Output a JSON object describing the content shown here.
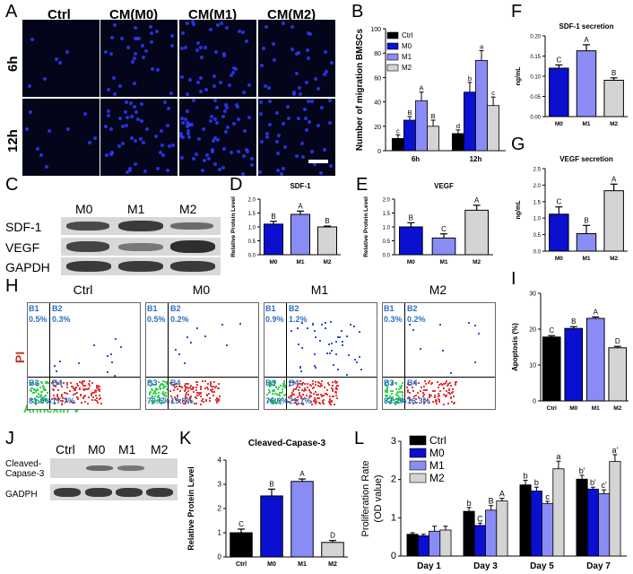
{
  "panel_labels": {
    "A": "A",
    "B": "B",
    "C": "C",
    "D": "D",
    "E": "E",
    "F": "F",
    "G": "G",
    "H": "H",
    "I": "I",
    "J": "J",
    "K": "K",
    "L": "L"
  },
  "panelA": {
    "col_headers": [
      "Ctrl",
      "CM(M0)",
      "CM(M1)",
      "CM(M2)"
    ],
    "row_headers": [
      "6h",
      "12h"
    ]
  },
  "panelC": {
    "col_headers": [
      "M0",
      "M1",
      "M2"
    ],
    "row_labels": [
      "SDF-1",
      "VEGF",
      "GAPDH"
    ]
  },
  "panelH": {
    "titles": [
      "Ctrl",
      "M0",
      "M1",
      "M2"
    ],
    "quadrants": [
      {
        "b1": "0.5%",
        "b2": "0.3%",
        "b3": "81.5%",
        "b4": "17.7%"
      },
      {
        "b1": "0.5%",
        "b2": "0.2%",
        "b3": "79.5%",
        "b4": "19.8%"
      },
      {
        "b1": "0.9%",
        "b2": "1.2%",
        "b3": "76.8%",
        "b4": "21.1%"
      },
      {
        "b1": "0.3%",
        "b2": "0.2%",
        "b3": "83.2%",
        "b4": "16.3%"
      }
    ],
    "quad_tags": {
      "b1": "B1",
      "b2": "B2",
      "b3": "B3",
      "b4": "B4"
    },
    "y_axis": "PI",
    "x_axis": "Annexin V"
  },
  "panelJ": {
    "col_headers": [
      "Ctrl",
      "M0",
      "M1",
      "M2"
    ],
    "row_labels": [
      "Cleaved-\nCapase-3",
      "GADPH"
    ],
    "row_label_1a": "Cleaved-",
    "row_label_1b": "Capase-3",
    "row_label_2": "GADPH"
  },
  "colors": {
    "ctrl": "#000000",
    "m0": "#0a0fd0",
    "m1": "#8a8cf5",
    "m2": "#d4d4d4"
  },
  "chart_data": [
    {
      "id": "B",
      "type": "bar",
      "title": "",
      "ylabel": "Number of migration BMSCs",
      "categories": [
        "6h",
        "12h"
      ],
      "ylim": [
        0,
        100
      ],
      "yticks": [
        0,
        20,
        40,
        60,
        80,
        100
      ],
      "series": [
        {
          "name": "Ctrl",
          "values": [
            10,
            14
          ],
          "letters": [
            "c",
            "d"
          ]
        },
        {
          "name": "M0",
          "values": [
            25,
            48
          ],
          "letters": [
            "B",
            "b"
          ]
        },
        {
          "name": "M1",
          "values": [
            41,
            74
          ],
          "letters": [
            "A",
            "a"
          ]
        },
        {
          "name": "M2",
          "values": [
            20,
            37
          ],
          "letters": [
            "B",
            "c"
          ]
        }
      ],
      "errors": [
        [
          3,
          3
        ],
        [
          3,
          8
        ],
        [
          7,
          8
        ],
        [
          5,
          7
        ]
      ],
      "legend": "top-left"
    },
    {
      "id": "D",
      "type": "bar",
      "title": "SDF-1",
      "ylabel": "Relative Protein Level",
      "categories": [
        "M0",
        "M1",
        "M2"
      ],
      "values": [
        1.1,
        1.45,
        1.0
      ],
      "errors": [
        0.1,
        0.12,
        0.03
      ],
      "letters": [
        "B",
        "A",
        "B"
      ],
      "ylim": [
        0,
        2
      ],
      "yticks": [
        0.0,
        0.5,
        1.0,
        1.5,
        2.0
      ]
    },
    {
      "id": "E",
      "type": "bar",
      "title": "VEGF",
      "ylabel": "Relative Protein Level",
      "categories": [
        "M0",
        "M1",
        "M2"
      ],
      "values": [
        1.0,
        0.6,
        1.6
      ],
      "errors": [
        0.15,
        0.15,
        0.18
      ],
      "letters": [
        "B",
        "C",
        "A"
      ],
      "ylim": [
        0,
        2
      ],
      "yticks": [
        0.0,
        0.5,
        1.0,
        1.5,
        2.0
      ]
    },
    {
      "id": "F",
      "type": "bar",
      "title": "SDF-1 secretion",
      "ylabel": "ng/mL",
      "categories": [
        "M0",
        "M1",
        "M2"
      ],
      "values": [
        0.12,
        0.163,
        0.09
      ],
      "errors": [
        0.008,
        0.015,
        0.006
      ],
      "letters": [
        "C",
        "A",
        "B"
      ],
      "ylim": [
        0,
        0.2
      ],
      "yticks": [
        0.0,
        0.05,
        0.1,
        0.15,
        0.2
      ]
    },
    {
      "id": "G",
      "type": "bar",
      "title": "VEGF secretion",
      "ylabel": "ng/mL",
      "categories": [
        "M0",
        "M1",
        "M2"
      ],
      "values": [
        1.12,
        0.53,
        1.83
      ],
      "errors": [
        0.22,
        0.25,
        0.2
      ],
      "letters": [
        "C",
        "B",
        "A"
      ],
      "ylim": [
        0,
        2.5
      ],
      "yticks": [
        0.0,
        0.5,
        1.0,
        1.5,
        2.0,
        2.5
      ]
    },
    {
      "id": "I",
      "type": "bar",
      "title": "",
      "ylabel": "Apoptosis (%)",
      "categories": [
        "Ctrl",
        "M0",
        "M1",
        "M2"
      ],
      "values": [
        17.8,
        20.2,
        23.0,
        14.8
      ],
      "errors": [
        0.4,
        0.5,
        0.4,
        0.4
      ],
      "letters": [
        "C",
        "B",
        "A",
        "D"
      ],
      "ylim": [
        0,
        30
      ],
      "yticks": [
        0,
        10,
        20,
        30
      ]
    },
    {
      "id": "K",
      "type": "bar",
      "title": "Cleaved-Capase-3",
      "ylabel": "Relative Protein Level",
      "categories": [
        "Ctrl",
        "M0",
        "M1",
        "M2"
      ],
      "values": [
        1.0,
        2.52,
        3.12,
        0.6
      ],
      "errors": [
        0.15,
        0.28,
        0.1,
        0.08
      ],
      "letters": [
        "C",
        "B",
        "A",
        "D"
      ],
      "ylim": [
        0,
        4
      ],
      "yticks": [
        0,
        1,
        2,
        3,
        4
      ]
    },
    {
      "id": "L",
      "type": "bar",
      "title": "",
      "ylabel": "Proliferation Rate (OD value)",
      "ylabel_1": "Proliferation Rate",
      "ylabel_2": "(OD value)",
      "categories": [
        "Day 1",
        "Day 3",
        "Day 5",
        "Day 7"
      ],
      "ylim": [
        0,
        3
      ],
      "yticks": [
        0,
        1,
        2,
        3
      ],
      "series": [
        {
          "name": "Ctrl",
          "values": [
            0.57,
            1.17,
            1.86,
            2.01
          ],
          "errors": [
            0.04,
            0.1,
            0.12,
            0.1
          ],
          "letters": [
            "",
            "b",
            "b",
            "b'"
          ]
        },
        {
          "name": "M0",
          "values": [
            0.53,
            0.8,
            1.7,
            1.75
          ],
          "errors": [
            0.04,
            0.06,
            0.1,
            0.05
          ],
          "letters": [
            "",
            "C",
            "b",
            "b'"
          ]
        },
        {
          "name": "M1",
          "values": [
            0.65,
            1.2,
            1.37,
            1.63
          ],
          "errors": [
            0.13,
            0.12,
            0.06,
            0.1
          ],
          "letters": [
            "",
            "B",
            "c",
            "c'"
          ]
        },
        {
          "name": "M2",
          "values": [
            0.68,
            1.44,
            2.28,
            2.47
          ],
          "errors": [
            0.1,
            0.07,
            0.2,
            0.18
          ],
          "letters": [
            "",
            "A",
            "a",
            "a'"
          ]
        }
      ],
      "legend": "top-left"
    }
  ]
}
